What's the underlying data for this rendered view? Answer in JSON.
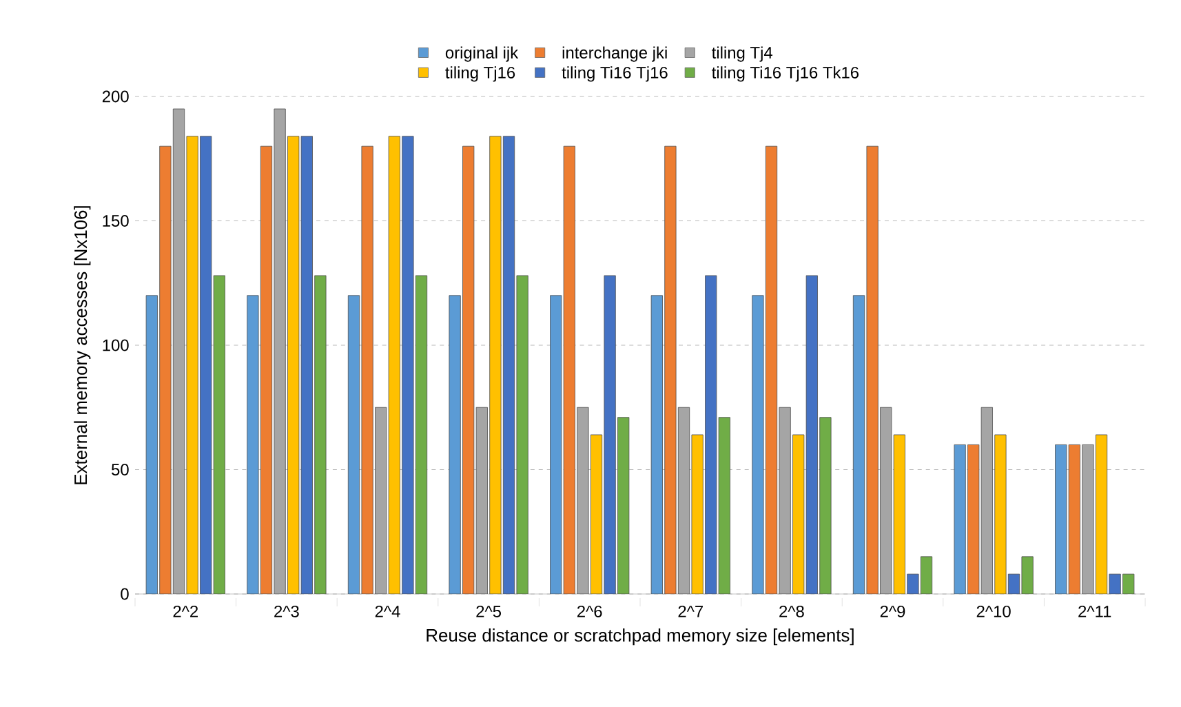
{
  "chart_data": {
    "type": "bar",
    "xlabel": "Reuse distance or scratchpad memory size [elements]",
    "ylabel": "External memory accesses [Nx106]",
    "categories": [
      "2^2",
      "2^3",
      "2^4",
      "2^5",
      "2^6",
      "2^7",
      "2^8",
      "2^9",
      "2^10",
      "2^11"
    ],
    "series": [
      {
        "name": "original ijk",
        "color": "#5b9bd5",
        "values": [
          120,
          120,
          120,
          120,
          120,
          120,
          120,
          120,
          60,
          60
        ]
      },
      {
        "name": "interchange jki",
        "color": "#ed7d31",
        "values": [
          180,
          180,
          180,
          180,
          180,
          180,
          180,
          180,
          60,
          60
        ]
      },
      {
        "name": "tiling Tj4",
        "color": "#a5a5a5",
        "values": [
          195,
          195,
          75,
          75,
          75,
          75,
          75,
          75,
          75,
          60
        ]
      },
      {
        "name": "tiling Tj16",
        "color": "#ffc000",
        "values": [
          184,
          184,
          184,
          184,
          64,
          64,
          64,
          64,
          64,
          64
        ]
      },
      {
        "name": "tiling Ti16 Tj16",
        "color": "#4472c4",
        "values": [
          184,
          184,
          184,
          184,
          128,
          128,
          128,
          8,
          8,
          8
        ]
      },
      {
        "name": "tiling Ti16 Tj16 Tk16",
        "color": "#70ad47",
        "values": [
          128,
          128,
          128,
          128,
          71,
          71,
          71,
          15,
          15,
          8
        ]
      }
    ],
    "ylim": [
      0,
      200
    ],
    "yticks": [
      0,
      50,
      100,
      150,
      200
    ],
    "grid": "y",
    "legend": "top"
  }
}
